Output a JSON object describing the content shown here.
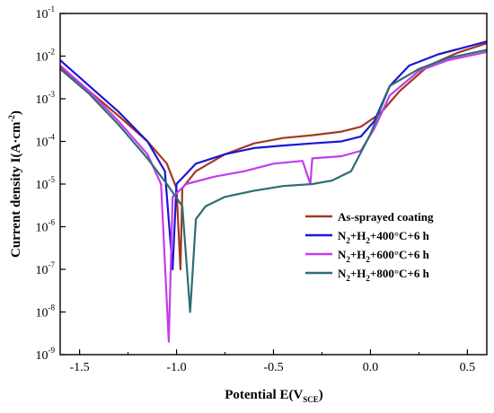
{
  "chart_data": {
    "type": "line",
    "title": "",
    "xlabel": {
      "main": "Potential E(V",
      "sub": "SCE",
      "end": ")"
    },
    "ylabel": {
      "main": "Current density I(A·cm",
      "sup": "-2",
      "end": ")"
    },
    "x_scale": "linear",
    "y_scale": "log",
    "xlim": [
      -1.6,
      0.6
    ],
    "ylim_exp": [
      -9,
      -1
    ],
    "x_ticks": [
      -1.5,
      -1.0,
      -0.5,
      0.0,
      0.5
    ],
    "x_tick_labels": [
      "-1.5",
      "-1.0",
      "-0.5",
      "0.0",
      "0.5"
    ],
    "y_ticks_exp": [
      -9,
      -8,
      -7,
      -6,
      -5,
      -4,
      -3,
      -2,
      -1
    ],
    "y_tick_label_base": "10",
    "legend_position": "lower-right",
    "series": [
      {
        "name_parts": [
          "As-sprayed coating"
        ],
        "color": "#a23a22",
        "points": [
          [
            -1.6,
            0.0055
          ],
          [
            -1.45,
            0.0015
          ],
          [
            -1.3,
            0.0004
          ],
          [
            -1.15,
            0.0001
          ],
          [
            -1.05,
            3e-05
          ],
          [
            -1.0,
            8e-06
          ],
          [
            -0.98,
            1e-07
          ],
          [
            -0.97,
            8e-06
          ],
          [
            -0.9,
            2e-05
          ],
          [
            -0.75,
            5e-05
          ],
          [
            -0.6,
            9e-05
          ],
          [
            -0.45,
            0.00012
          ],
          [
            -0.3,
            0.00014
          ],
          [
            -0.15,
            0.00017
          ],
          [
            -0.05,
            0.00022
          ],
          [
            0.05,
            0.00045
          ],
          [
            0.15,
            0.0015
          ],
          [
            0.3,
            0.006
          ],
          [
            0.45,
            0.012
          ],
          [
            0.6,
            0.02
          ]
        ]
      },
      {
        "name_parts": [
          "N",
          "2",
          "+H",
          "2",
          "+400°C+6 h"
        ],
        "color": "#1c16d6",
        "points": [
          [
            -1.6,
            0.008
          ],
          [
            -1.45,
            0.002
          ],
          [
            -1.3,
            0.0005
          ],
          [
            -1.15,
            0.0001
          ],
          [
            -1.06,
            2e-05
          ],
          [
            -1.02,
            1e-07
          ],
          [
            -1.0,
            1e-05
          ],
          [
            -0.9,
            3e-05
          ],
          [
            -0.75,
            5e-05
          ],
          [
            -0.6,
            7e-05
          ],
          [
            -0.45,
            8e-05
          ],
          [
            -0.3,
            9e-05
          ],
          [
            -0.15,
            0.0001
          ],
          [
            -0.05,
            0.00013
          ],
          [
            0.02,
            0.0003
          ],
          [
            0.1,
            0.002
          ],
          [
            0.2,
            0.006
          ],
          [
            0.35,
            0.011
          ],
          [
            0.6,
            0.022
          ]
        ]
      },
      {
        "name_parts": [
          "N",
          "2",
          "+H",
          "2",
          "+600°C+6 h"
        ],
        "color": "#c43ced",
        "points": [
          [
            -1.6,
            0.006
          ],
          [
            -1.45,
            0.0015
          ],
          [
            -1.3,
            0.0003
          ],
          [
            -1.15,
            5e-05
          ],
          [
            -1.08,
            1e-05
          ],
          [
            -1.04,
            2e-09
          ],
          [
            -1.02,
            5e-06
          ],
          [
            -0.95,
            1e-05
          ],
          [
            -0.8,
            1.5e-05
          ],
          [
            -0.65,
            2e-05
          ],
          [
            -0.5,
            3e-05
          ],
          [
            -0.35,
            3.5e-05
          ],
          [
            -0.31,
            1e-05
          ],
          [
            -0.3,
            4e-05
          ],
          [
            -0.15,
            4.5e-05
          ],
          [
            -0.05,
            6e-05
          ],
          [
            0.02,
            0.0002
          ],
          [
            0.1,
            0.0012
          ],
          [
            0.25,
            0.0045
          ],
          [
            0.4,
            0.008
          ],
          [
            0.6,
            0.0125
          ]
        ]
      },
      {
        "name_parts": [
          "N",
          "2",
          "+H",
          "2",
          "+800°C+6 h"
        ],
        "color": "#2f6d73",
        "points": [
          [
            -1.6,
            0.005
          ],
          [
            -1.45,
            0.0013
          ],
          [
            -1.3,
            0.00025
          ],
          [
            -1.15,
            4e-05
          ],
          [
            -1.05,
            1e-05
          ],
          [
            -0.97,
            3e-06
          ],
          [
            -0.93,
            1e-08
          ],
          [
            -0.9,
            1.5e-06
          ],
          [
            -0.85,
            3e-06
          ],
          [
            -0.75,
            5e-06
          ],
          [
            -0.6,
            7e-06
          ],
          [
            -0.45,
            9e-06
          ],
          [
            -0.3,
            1e-05
          ],
          [
            -0.2,
            1.2e-05
          ],
          [
            -0.1,
            2e-05
          ],
          [
            0.0,
            0.00015
          ],
          [
            0.1,
            0.002
          ],
          [
            0.25,
            0.005
          ],
          [
            0.4,
            0.009
          ],
          [
            0.6,
            0.014
          ]
        ]
      }
    ]
  }
}
